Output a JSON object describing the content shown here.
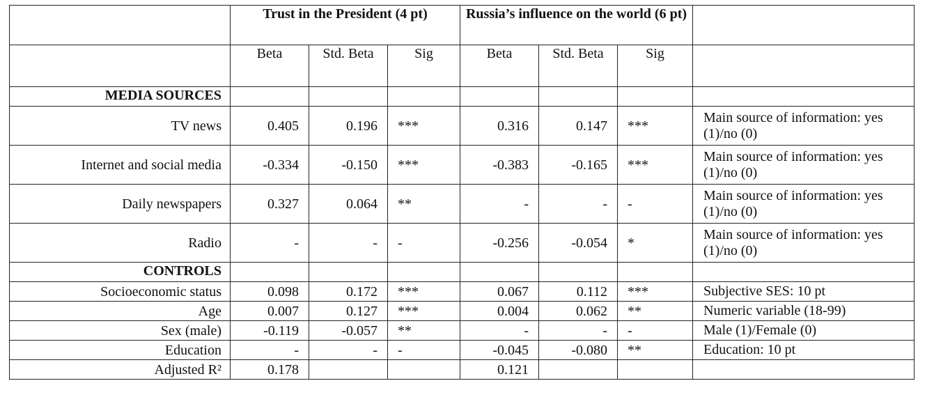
{
  "header": {
    "group1": "Trust in the President (4 pt)",
    "group2": "Russia’s influence on the world (6 pt)"
  },
  "columns": [
    "Beta",
    "Std. Beta",
    "Sig",
    "Beta",
    "Std. Beta",
    "Sig"
  ],
  "sections": {
    "media": "MEDIA SOURCES",
    "controls": "CONTROLS"
  },
  "rows": [
    {
      "label": "TV news",
      "b1": "0.405",
      "s1": "0.196",
      "g1": "***",
      "b2": "0.316",
      "s2": "0.147",
      "g2": "***",
      "note": "Main source of information: yes (1)/no (0)"
    },
    {
      "label": "Internet and social media",
      "b1": "-0.334",
      "s1": "-0.150",
      "g1": "***",
      "b2": "-0.383",
      "s2": "-0.165",
      "g2": "***",
      "note": "Main source of information: yes (1)/no (0)"
    },
    {
      "label": "Daily newspapers",
      "b1": "0.327",
      "s1": "0.064",
      "g1": "**",
      "b2": "-",
      "s2": "-",
      "g2": "-",
      "note": "Main source of information: yes (1)/no (0)"
    },
    {
      "label": "Radio",
      "b1": "-",
      "s1": "-",
      "g1": "-",
      "b2": "-0.256",
      "s2": "-0.054",
      "g2": "*",
      "note": "Main source of information: yes (1)/no (0)"
    },
    {
      "label": "Socioeconomic status",
      "b1": "0.098",
      "s1": "0.172",
      "g1": "***",
      "b2": "0.067",
      "s2": "0.112",
      "g2": "***",
      "note": "Subjective SES: 10 pt"
    },
    {
      "label": "Age",
      "b1": "0.007",
      "s1": "0.127",
      "g1": "***",
      "b2": "0.004",
      "s2": "0.062",
      "g2": "**",
      "note": "Numeric variable (18-99)"
    },
    {
      "label": "Sex (male)",
      "b1": "-0.119",
      "s1": "-0.057",
      "g1": "**",
      "b2": "-",
      "s2": "-",
      "g2": "-",
      "note": "Male (1)/Female (0)"
    },
    {
      "label": "Education",
      "b1": "-",
      "s1": "-",
      "g1": "-",
      "b2": "-0.045",
      "s2": "-0.080",
      "g2": "**",
      "note": "Education: 10 pt"
    }
  ],
  "adjusted": {
    "label": "Adjusted R²",
    "r1": "0.178",
    "r2": "0.121"
  }
}
